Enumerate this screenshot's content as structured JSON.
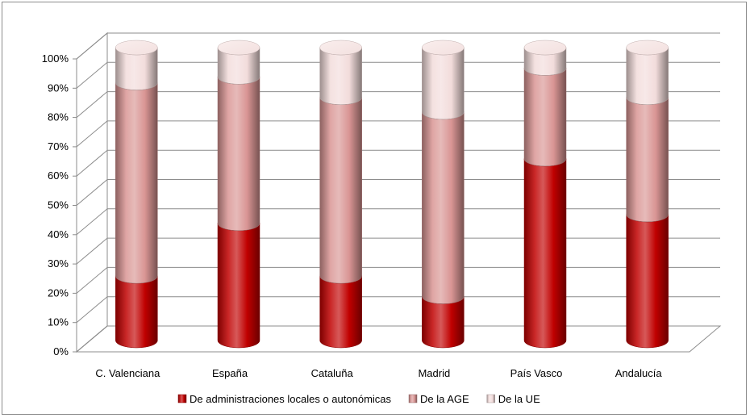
{
  "chart_data": {
    "type": "bar",
    "stacked": true,
    "percent_stacked": true,
    "three_d": true,
    "bar_shape": "cylinder",
    "categories": [
      "C. Valenciana",
      "España",
      "Cataluña",
      "Madrid",
      "País Vasco",
      "Andalucía"
    ],
    "series": [
      {
        "name": "De administraciones locales o autonómicas",
        "values": [
          22,
          40,
          22,
          15,
          62,
          43
        ],
        "color": "#c00000"
      },
      {
        "name": "De la AGE",
        "values": [
          66,
          50,
          61,
          63,
          31,
          40
        ],
        "color": "#d99594"
      },
      {
        "name": "De la UE",
        "values": [
          12,
          10,
          17,
          22,
          7,
          17
        ],
        "color": "#f2dcdb"
      }
    ],
    "ylim": [
      0,
      100
    ],
    "y_ticks": [
      "0%",
      "10%",
      "20%",
      "30%",
      "40%",
      "50%",
      "60%",
      "70%",
      "80%",
      "90%",
      "100%"
    ],
    "grid": true,
    "legend_position": "bottom",
    "title": "",
    "xlabel": "",
    "ylabel": ""
  }
}
